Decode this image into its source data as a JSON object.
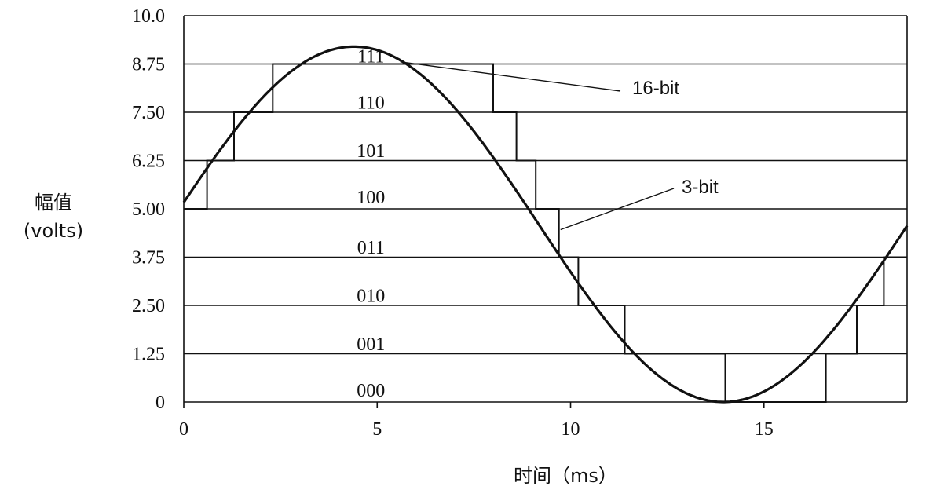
{
  "chart_data": {
    "type": "line",
    "xlabel": "时间（ms）",
    "ylabel": [
      "幅值",
      "(volts)"
    ],
    "xlim": [
      0,
      18.7
    ],
    "ylim": [
      0,
      10
    ],
    "x_ticks": [
      0,
      5,
      10,
      15
    ],
    "x_tick_labels": [
      "0",
      "5",
      "10",
      "15"
    ],
    "y_ticks": [
      0,
      1.25,
      2.5,
      3.75,
      5,
      6.25,
      7.5,
      8.75,
      10
    ],
    "y_tick_labels": [
      "0",
      "1.25",
      "2.50",
      "3.75",
      "5.00",
      "6.25",
      "7.50",
      "8.75",
      "10.0"
    ],
    "quantization_codes": [
      {
        "code": "000",
        "y": 0.3,
        "x": 5
      },
      {
        "code": "001",
        "y": 1.5,
        "x": 5
      },
      {
        "code": "010",
        "y": 2.75,
        "x": 5
      },
      {
        "code": "011",
        "y": 4.0,
        "x": 5
      },
      {
        "code": "100",
        "y": 5.3,
        "x": 5
      },
      {
        "code": "101",
        "y": 6.5,
        "x": 5
      },
      {
        "code": "110",
        "y": 7.75,
        "x": 5
      },
      {
        "code": "111",
        "y": 8.95,
        "x": 5
      }
    ],
    "series": [
      {
        "name": "16-bit",
        "kind": "sine",
        "params": {
          "offset": 4.6,
          "amplitude": 4.6,
          "period_ms": 19.1,
          "peak_x": 4.4
        },
        "sample_points": [
          [
            0,
            4.6
          ],
          [
            2,
            8.1
          ],
          [
            4.4,
            9.2
          ],
          [
            7,
            7.6
          ],
          [
            9,
            4.5
          ],
          [
            10,
            2.6
          ],
          [
            12,
            0.6
          ],
          [
            13.95,
            0
          ],
          [
            16,
            0.7
          ],
          [
            18,
            3.8
          ],
          [
            18.7,
            4.9
          ]
        ]
      },
      {
        "name": "3-bit",
        "kind": "step",
        "breaks": [
          0,
          0.6,
          1.3,
          2.3,
          8.0,
          8.6,
          9.1,
          9.7,
          10.2,
          11.4,
          14.0,
          16.6,
          17.4,
          18.1,
          18.7
        ],
        "levels": [
          5.0,
          6.25,
          7.5,
          8.75,
          7.5,
          6.25,
          5.0,
          3.75,
          2.5,
          1.25,
          0,
          1.25,
          2.5,
          3.75
        ]
      }
    ],
    "annotations": [
      {
        "text": "16-bit",
        "target": "sine",
        "at_x": 5.6
      },
      {
        "text": "3-bit",
        "target": "step",
        "at_x": 9.7
      }
    ],
    "grid": "horizontal"
  }
}
